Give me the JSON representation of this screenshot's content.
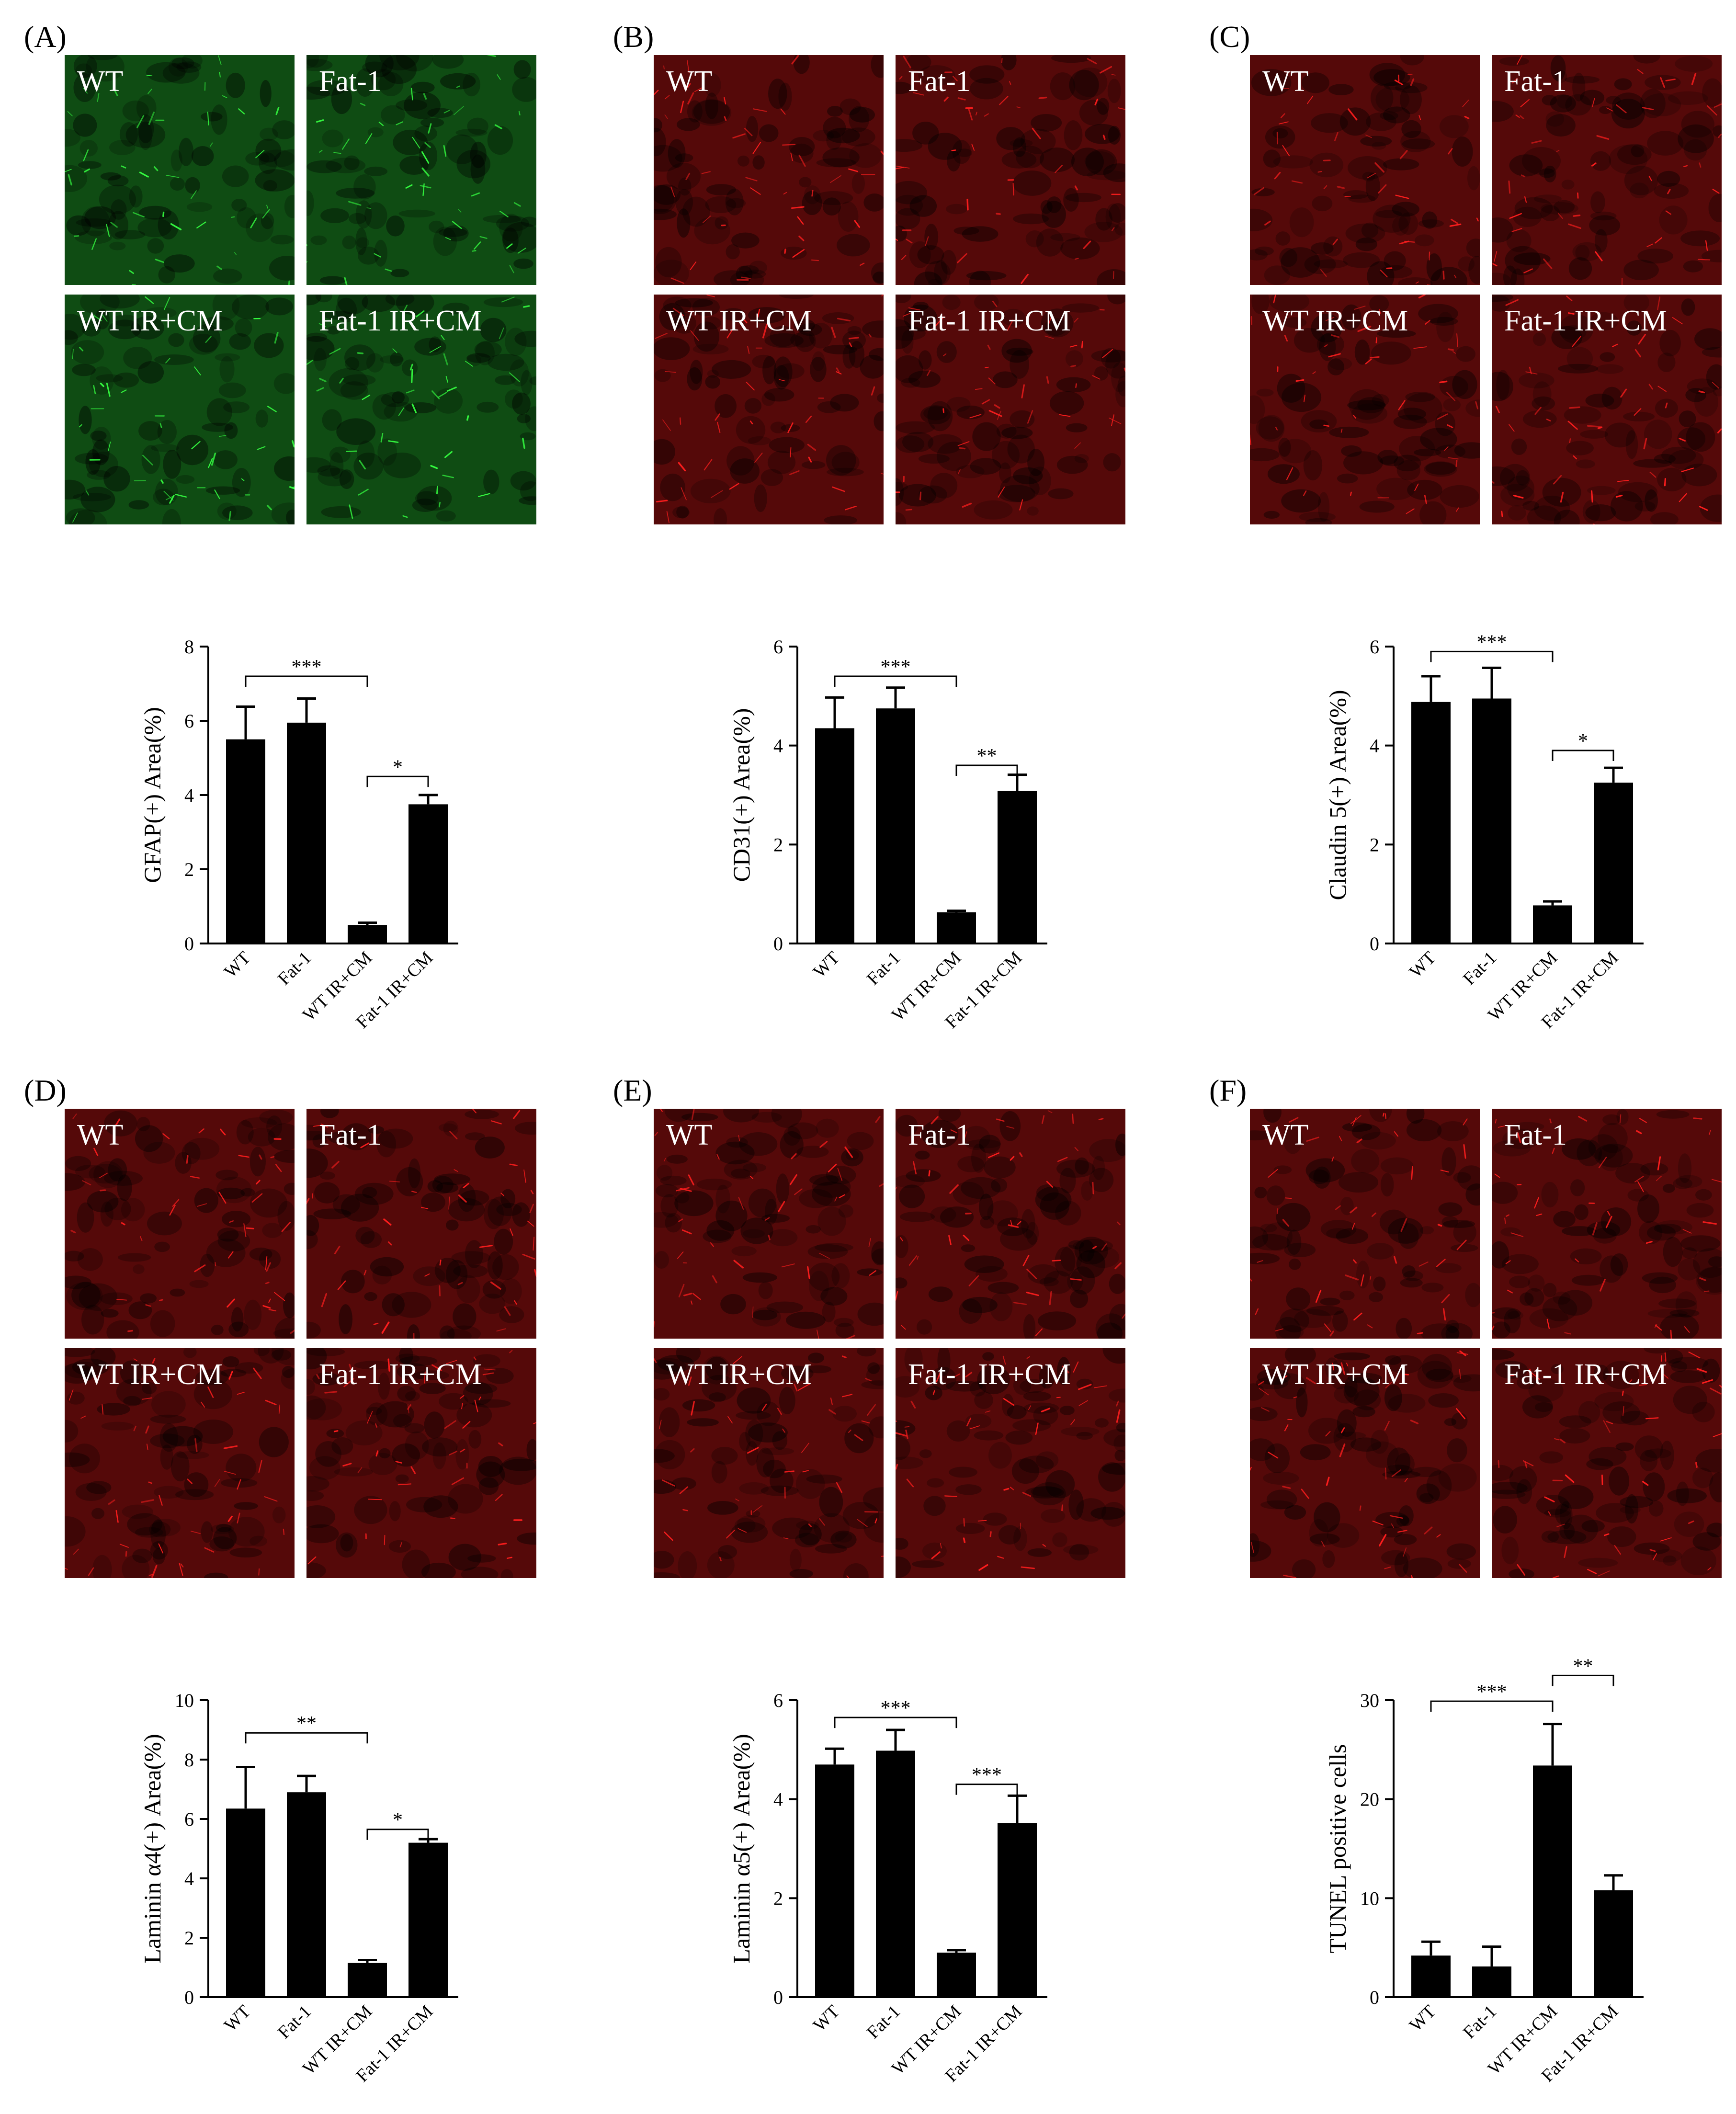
{
  "panels": [
    {
      "letter": "(A)",
      "tint": "#1c8a22",
      "micro_labels": [
        "WT",
        "Fat-1",
        "WT IR+CM",
        "Fat-1 IR+CM"
      ]
    },
    {
      "letter": "(B)",
      "tint": "#9a1010",
      "micro_labels": [
        "WT",
        "Fat-1",
        "WT IR+CM",
        "Fat-1 IR+CM"
      ]
    },
    {
      "letter": "(C)",
      "tint": "#9a1010",
      "micro_labels": [
        "WT",
        "Fat-1",
        "WT IR+CM",
        "Fat-1 IR+CM"
      ]
    },
    {
      "letter": "(D)",
      "tint": "#9a1010",
      "micro_labels": [
        "WT",
        "Fat-1",
        "WT IR+CM",
        "Fat-1 IR+CM"
      ]
    },
    {
      "letter": "(E)",
      "tint": "#9a1010",
      "micro_labels": [
        "WT",
        "Fat-1",
        "WT IR+CM",
        "Fat-1 IR+CM"
      ]
    },
    {
      "letter": "(F)",
      "tint": "#9a1010",
      "micro_labels": [
        "WT",
        "Fat-1",
        "WT IR+CM",
        "Fat-1 IR+CM"
      ]
    }
  ],
  "chart_data": [
    {
      "panel": "(A)",
      "type": "bar",
      "categories": [
        "WT",
        "Fat-1",
        "WT IR+CM",
        "Fat-1 IR+CM"
      ],
      "values": [
        5.5,
        5.95,
        0.5,
        3.75
      ],
      "errors": [
        0.88,
        0.65,
        0.06,
        0.25
      ],
      "ylabel": "GFAP(+) Area(%)",
      "ylim": [
        0,
        8
      ],
      "yticks": [
        0,
        2,
        4,
        6,
        8
      ],
      "significance": [
        {
          "from": 0,
          "to": 2,
          "label": "***",
          "level": 7.2
        },
        {
          "from": 2,
          "to": 3,
          "label": "*",
          "level": 4.5
        }
      ]
    },
    {
      "panel": "(B)",
      "type": "bar",
      "categories": [
        "WT",
        "Fat-1",
        "WT IR+CM",
        "Fat-1 IR+CM"
      ],
      "values": [
        4.35,
        4.75,
        0.63,
        3.08
      ],
      "errors": [
        0.62,
        0.42,
        0.03,
        0.33
      ],
      "ylabel": "CD31(+) Area(%)",
      "ylim": [
        0,
        6
      ],
      "yticks": [
        0,
        2,
        4,
        6
      ],
      "significance": [
        {
          "from": 0,
          "to": 2,
          "label": "***",
          "level": 5.4
        },
        {
          "from": 2,
          "to": 3,
          "label": "**",
          "level": 3.6
        }
      ]
    },
    {
      "panel": "(C)",
      "type": "bar",
      "categories": [
        "WT",
        "Fat-1",
        "WT IR+CM",
        "Fat-1 IR+CM"
      ],
      "values": [
        4.88,
        4.95,
        0.77,
        3.25
      ],
      "errors": [
        0.52,
        0.62,
        0.08,
        0.3
      ],
      "ylabel": "Claudin 5(+) Area(%)",
      "ylim": [
        0,
        6
      ],
      "yticks": [
        0,
        2,
        4,
        6
      ],
      "significance": [
        {
          "from": 0,
          "to": 2,
          "label": "***",
          "level": 5.9
        },
        {
          "from": 2,
          "to": 3,
          "label": "*",
          "level": 3.9
        }
      ]
    },
    {
      "panel": "(D)",
      "type": "bar",
      "categories": [
        "WT",
        "Fat-1",
        "WT IR+CM",
        "Fat-1 IR+CM"
      ],
      "values": [
        6.35,
        6.9,
        1.15,
        5.2
      ],
      "errors": [
        1.4,
        0.55,
        0.1,
        0.12
      ],
      "ylabel": "Laminin α4(+) Area(%)",
      "ylim": [
        0,
        10
      ],
      "yticks": [
        0,
        2,
        4,
        6,
        8,
        10
      ],
      "significance": [
        {
          "from": 0,
          "to": 2,
          "label": "**",
          "level": 8.9
        },
        {
          "from": 2,
          "to": 3,
          "label": "*",
          "level": 5.65
        }
      ]
    },
    {
      "panel": "(E)",
      "type": "bar",
      "categories": [
        "WT",
        "Fat-1",
        "WT IR+CM",
        "Fat-1 IR+CM"
      ],
      "values": [
        4.7,
        4.98,
        0.9,
        3.52
      ],
      "errors": [
        0.32,
        0.42,
        0.05,
        0.55
      ],
      "ylabel": "Laminin α5(+) Area(%)",
      "ylim": [
        0,
        6
      ],
      "yticks": [
        0,
        2,
        4,
        6
      ],
      "significance": [
        {
          "from": 0,
          "to": 2,
          "label": "***",
          "level": 5.65
        },
        {
          "from": 2,
          "to": 3,
          "label": "***",
          "level": 4.3
        }
      ]
    },
    {
      "panel": "(F)",
      "type": "bar",
      "categories": [
        "WT",
        "Fat-1",
        "WT IR+CM",
        "Fat-1 IR+CM"
      ],
      "values": [
        4.2,
        3.1,
        23.4,
        10.8
      ],
      "errors": [
        1.4,
        2.0,
        4.2,
        1.5
      ],
      "ylabel": "TUNEL positive cells",
      "ylim": [
        0,
        30
      ],
      "yticks": [
        0,
        10,
        20,
        30
      ],
      "significance": [
        {
          "from": 0,
          "to": 2,
          "label": "***",
          "level": 29.9
        },
        {
          "from": 2,
          "to": 3,
          "label": "**",
          "level": 32.5
        }
      ]
    }
  ]
}
